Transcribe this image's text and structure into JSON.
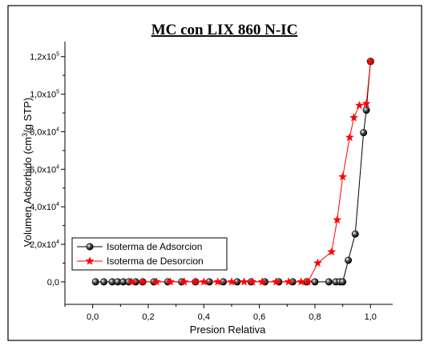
{
  "chart_data": {
    "type": "scatter",
    "title": "MC con LIX 860 N-IC",
    "xlabel": "Presion Relativa",
    "ylabel_parts": [
      "Volumen Adsorbido (cm",
      "3",
      "/g STP)"
    ],
    "xlim": [
      -0.1,
      1.08
    ],
    "ylim": [
      -12000,
      128000
    ],
    "x_ticks": [
      0.0,
      0.2,
      0.4,
      0.6,
      0.8,
      1.0
    ],
    "x_tick_labels": [
      "0,0",
      "0,2",
      "0,4",
      "0,6",
      "0,8",
      "1,0"
    ],
    "y_ticks": [
      0,
      20000,
      40000,
      60000,
      80000,
      100000,
      120000
    ],
    "y_tick_labels": [
      {
        "base": "0,0",
        "exp": ""
      },
      {
        "base": "2,0x10",
        "exp": "4"
      },
      {
        "base": "4,0x10",
        "exp": "4"
      },
      {
        "base": "6,0x10",
        "exp": "4"
      },
      {
        "base": "8,0x10",
        "exp": "4"
      },
      {
        "base": "1,0x10",
        "exp": "5"
      },
      {
        "base": "1,2x10",
        "exp": "5"
      }
    ],
    "legend_position": "lower-left",
    "series": [
      {
        "name": "Isoterma de Adsorcion",
        "color": "#000000",
        "marker": "sphere",
        "x": [
          0.01,
          0.04,
          0.07,
          0.09,
          0.11,
          0.13,
          0.155,
          0.18,
          0.22,
          0.27,
          0.32,
          0.37,
          0.42,
          0.47,
          0.52,
          0.57,
          0.62,
          0.67,
          0.72,
          0.77,
          0.8,
          0.85,
          0.875,
          0.89,
          0.9,
          0.92,
          0.945,
          0.975,
          0.985,
          1.0
        ],
        "y": [
          0,
          0,
          0,
          0,
          0,
          0,
          0,
          0,
          0,
          0,
          0,
          0,
          0,
          0,
          0,
          0,
          0,
          0,
          0,
          0,
          0,
          0,
          0,
          0,
          0,
          11500,
          25500,
          79500,
          91500,
          117500
        ]
      },
      {
        "name": "Isoterma de Desorcion",
        "color": "#ff0000",
        "marker": "star",
        "x": [
          1.0,
          0.985,
          0.96,
          0.94,
          0.925,
          0.9,
          0.88,
          0.86,
          0.81,
          0.775,
          0.75,
          0.705,
          0.66,
          0.61,
          0.575,
          0.545,
          0.5,
          0.45,
          0.4,
          0.37,
          0.33,
          0.28,
          0.23,
          0.18,
          0.14
        ],
        "y": [
          117500,
          95000,
          94000,
          87500,
          77000,
          56000,
          33000,
          16000,
          10000,
          0,
          0,
          0,
          0,
          0,
          0,
          0,
          0,
          0,
          0,
          0,
          0,
          0,
          0,
          0,
          0
        ]
      }
    ]
  }
}
